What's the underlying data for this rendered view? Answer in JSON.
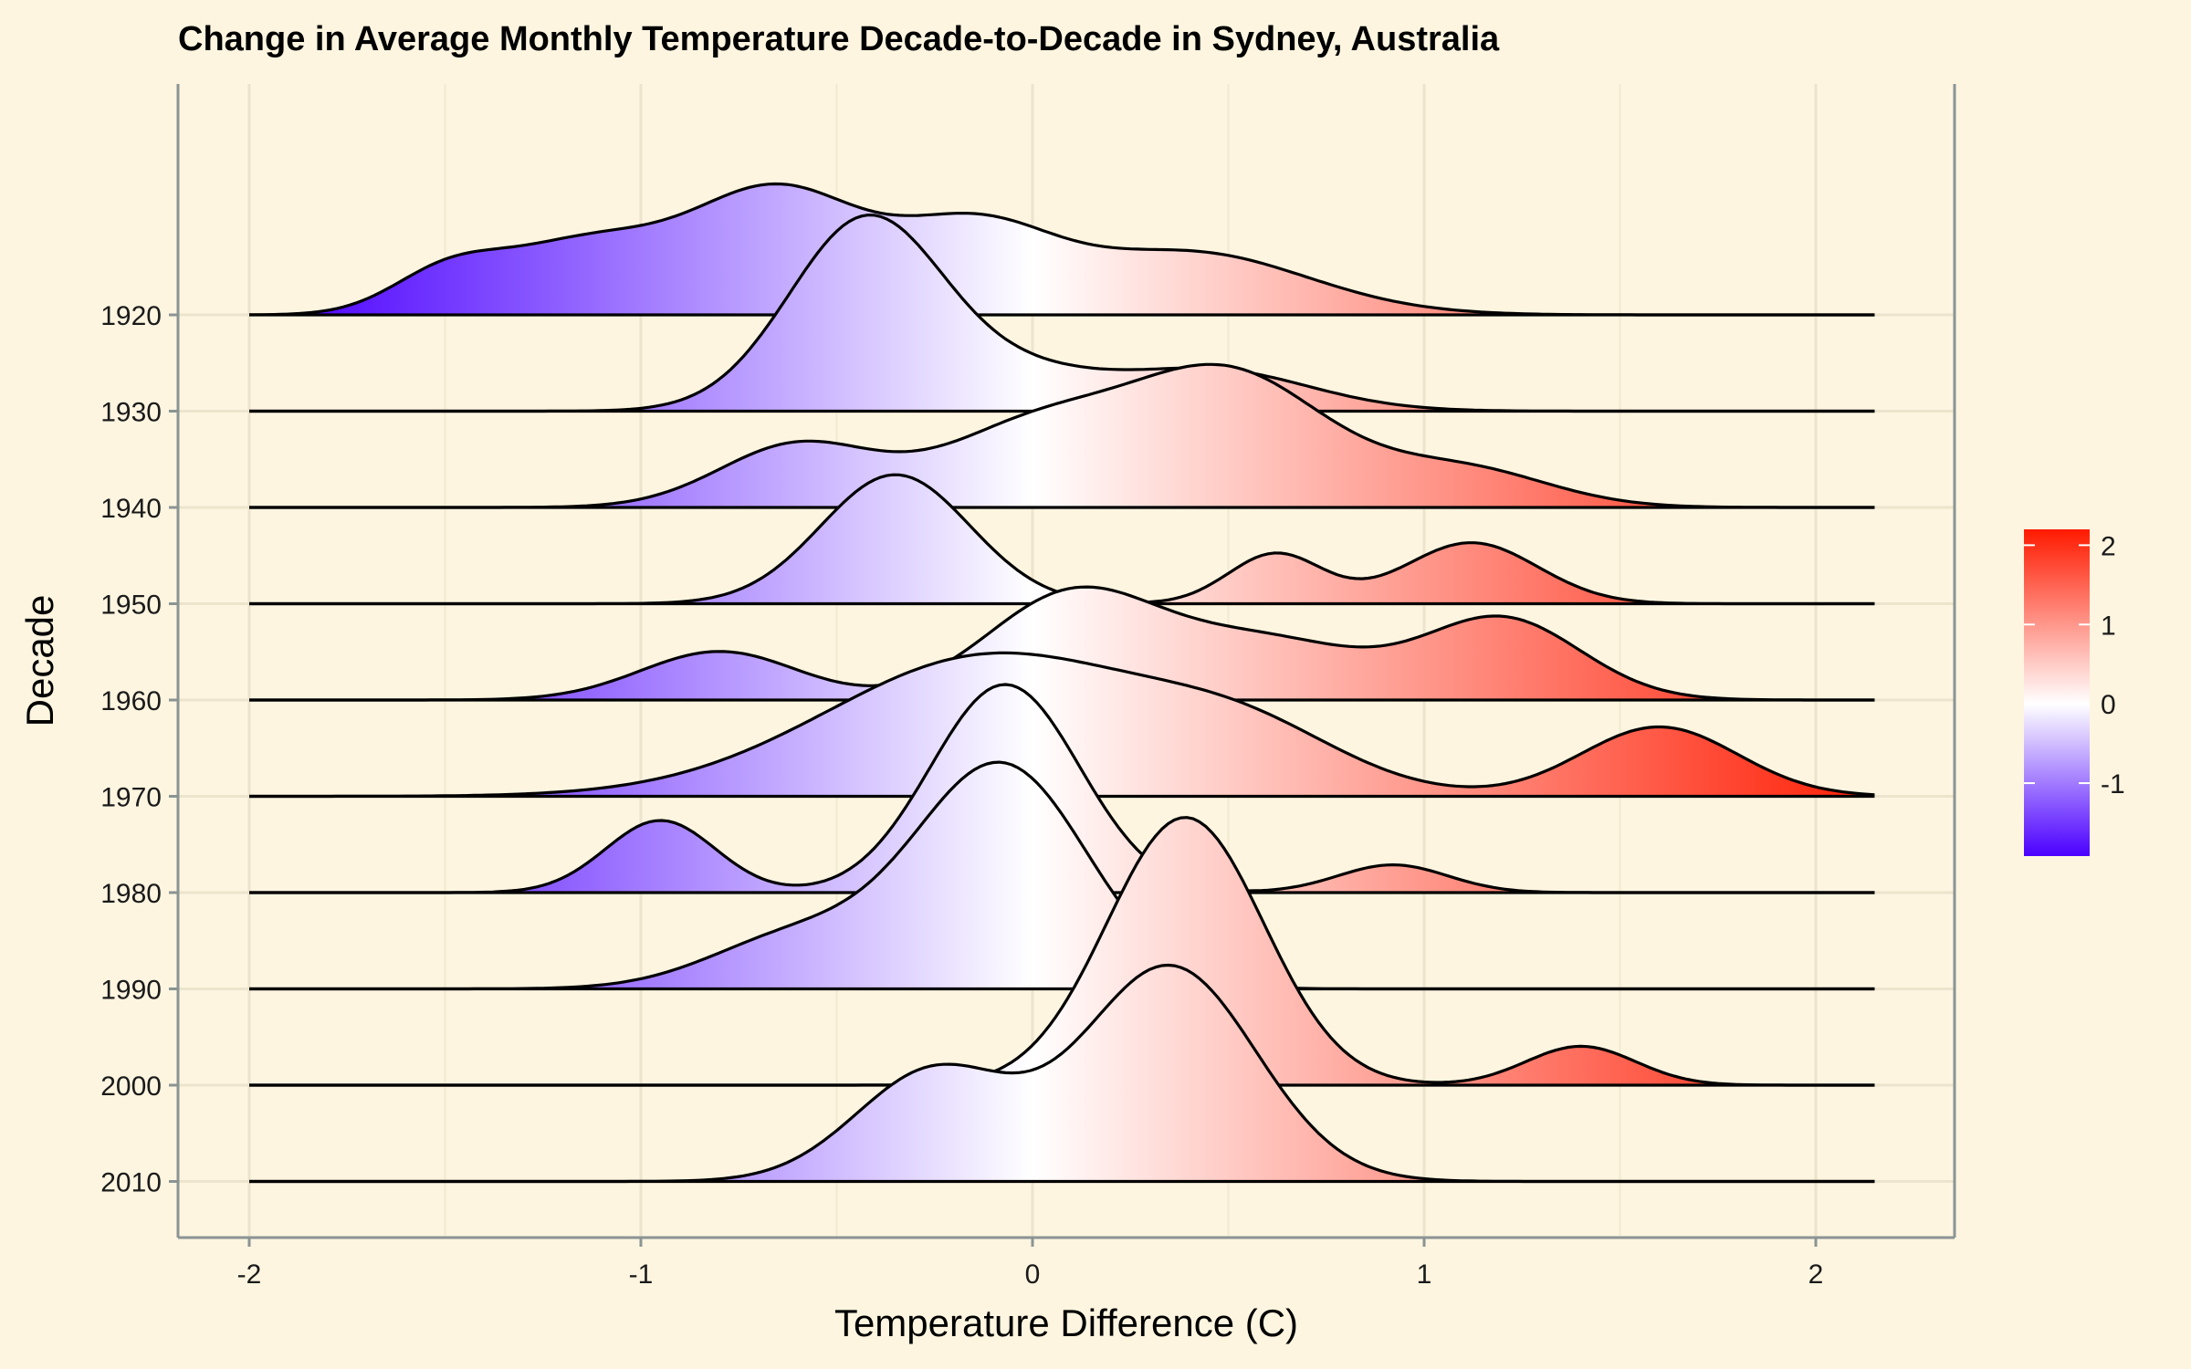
{
  "chart_data": {
    "type": "ridgeline",
    "title": "Change in Average Monthly Temperature Decade-to-Decade in Sydney, Australia",
    "xlabel": "Temperature Difference (C)",
    "ylabel": "Decade",
    "xlim": [
      -2.2,
      2.35
    ],
    "x_ticks": [
      -2,
      -1,
      0,
      1,
      2
    ],
    "x_tick_labels": [
      "-2",
      "-1",
      "0",
      "1",
      "2"
    ],
    "density_range": [
      -2.0,
      2.15
    ],
    "grid": true,
    "background": "#fdf5e0",
    "legend": {
      "position": "right",
      "type": "colorbar",
      "range": [
        -1.92,
        2.2
      ],
      "ticks": [
        -1,
        0,
        1,
        2
      ],
      "tick_labels": [
        "-1",
        "0",
        "1",
        "2"
      ],
      "colors": {
        "low": "#4b00ff",
        "mid": "#ffffff",
        "high": "#ff1a00"
      }
    },
    "series": [
      {
        "name": "1920",
        "quartile_line": [
          -1.43,
          0.95
        ],
        "components": [
          [
            -1.5,
            0.14,
            0.26
          ],
          [
            -1.15,
            0.22,
            0.5
          ],
          [
            -0.65,
            0.22,
            0.88
          ],
          [
            -0.15,
            0.2,
            0.58
          ],
          [
            0.4,
            0.3,
            0.45
          ]
        ]
      },
      {
        "name": "1930",
        "quartile_line": [
          -0.67,
          0.9
        ],
        "components": [
          [
            -0.42,
            0.2,
            1.4
          ],
          [
            0.0,
            0.18,
            0.2
          ],
          [
            0.45,
            0.25,
            0.3
          ]
        ]
      },
      {
        "name": "1940",
        "quartile_line": [
          -0.35,
          1.22
        ],
        "components": [
          [
            -0.6,
            0.2,
            0.45
          ],
          [
            0.0,
            0.24,
            0.56
          ],
          [
            0.5,
            0.25,
            0.95
          ],
          [
            1.1,
            0.22,
            0.27
          ]
        ]
      },
      {
        "name": "1950",
        "quartile_line": [
          -0.68,
          1.18
        ],
        "components": [
          [
            -0.35,
            0.19,
            0.93
          ],
          [
            0.62,
            0.12,
            0.36
          ],
          [
            1.12,
            0.17,
            0.44
          ]
        ]
      },
      {
        "name": "1960",
        "quartile_line": [
          -0.63,
          1.2
        ],
        "components": [
          [
            -0.8,
            0.2,
            0.35
          ],
          [
            0.1,
            0.22,
            0.75
          ],
          [
            0.6,
            0.25,
            0.42
          ],
          [
            1.2,
            0.2,
            0.58
          ]
        ]
      },
      {
        "name": "1970",
        "quartile_line": [
          -0.55,
          1.6
        ],
        "components": [
          [
            -0.1,
            0.42,
            1.02
          ],
          [
            0.55,
            0.25,
            0.35
          ],
          [
            1.6,
            0.2,
            0.5
          ]
        ]
      },
      {
        "name": "1980",
        "quartile_line": [
          -0.97,
          0.93
        ],
        "components": [
          [
            -0.95,
            0.14,
            0.52
          ],
          [
            -0.07,
            0.19,
            1.5
          ],
          [
            0.92,
            0.14,
            0.2
          ]
        ]
      },
      {
        "name": "1990",
        "quartile_line": [
          -0.77,
          0.58
        ],
        "components": [
          [
            -0.6,
            0.22,
            0.38
          ],
          [
            -0.08,
            0.22,
            1.61
          ]
        ]
      },
      {
        "name": "2000",
        "quartile_line": [
          -0.45,
          1.39
        ],
        "components": [
          [
            0.39,
            0.2,
            1.93
          ],
          [
            1.4,
            0.14,
            0.28
          ]
        ]
      },
      {
        "name": "2010",
        "quartile_line": [
          -0.39,
          0.82
        ],
        "components": [
          [
            -0.25,
            0.2,
            0.8
          ],
          [
            0.35,
            0.22,
            1.55
          ]
        ]
      }
    ]
  }
}
